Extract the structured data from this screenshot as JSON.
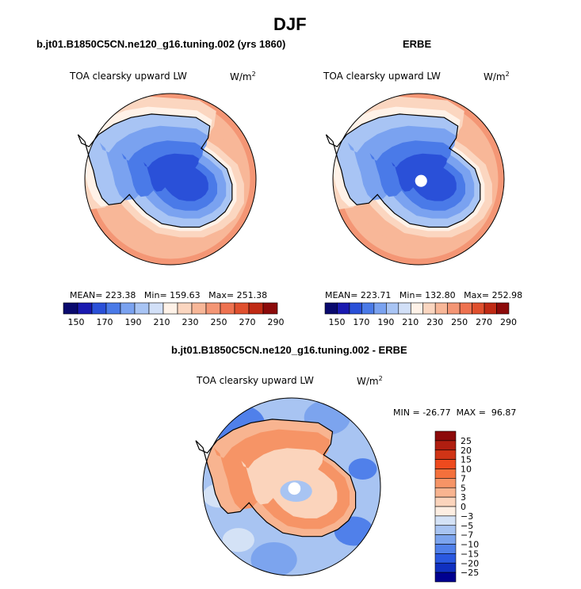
{
  "page": {
    "title": "DJF",
    "panel_left_title": "b.jt01.B1850C5CN.ne120_g16.tuning.002 (yrs 1860)",
    "panel_right_title": "ERBE",
    "panel_bottom_title": "b.jt01.B1850C5CN.ne120_g16.tuning.002 - ERBE",
    "variable": "TOA clearsky upward LW",
    "units_base": "W/m",
    "units_exp": "2"
  },
  "chart_data": [
    {
      "type": "heatmap",
      "name": "model",
      "title": "b.jt01.B1850C5CN.ne120_g16.tuning.002 (yrs 1860)",
      "projection": "polar-stereographic-south",
      "stats": {
        "mean_label": "MEAN=",
        "mean": "223.38",
        "min_label": "Min=",
        "min": "159.63",
        "max_label": "Max=",
        "max": "251.38"
      },
      "colorbar_levels": [
        150,
        170,
        190,
        210,
        230,
        250,
        270,
        290
      ],
      "colorbar_colors": [
        "#0a0a6e",
        "#1a1ab0",
        "#2a50d8",
        "#4a7ae8",
        "#7aa2f0",
        "#a8c4f4",
        "#d2e0f8",
        "#fff2e8",
        "#fbd6c0",
        "#f8b798",
        "#f49675",
        "#ee7250",
        "#e0502e",
        "#c02a14",
        "#8c0a0a"
      ]
    },
    {
      "type": "heatmap",
      "name": "obs",
      "title": "ERBE",
      "projection": "polar-stereographic-south",
      "stats": {
        "mean_label": "MEAN=",
        "mean": "223.71",
        "min_label": "Min=",
        "min": "132.80",
        "max_label": "Max=",
        "max": "252.98"
      },
      "colorbar_levels": [
        150,
        170,
        190,
        210,
        230,
        250,
        270,
        290
      ],
      "colorbar_colors": [
        "#0a0a6e",
        "#1a1ab0",
        "#2a50d8",
        "#4a7ae8",
        "#7aa2f0",
        "#a8c4f4",
        "#d2e0f8",
        "#fff2e8",
        "#fbd6c0",
        "#f8b798",
        "#f49675",
        "#ee7250",
        "#e0502e",
        "#c02a14",
        "#8c0a0a"
      ]
    },
    {
      "type": "heatmap",
      "name": "difference",
      "title": "b.jt01.B1850C5CN.ne120_g16.tuning.002 - ERBE",
      "projection": "polar-stereographic-south",
      "stats": {
        "min_label": "MIN =",
        "min": "-26.77",
        "max_label": "MAX =",
        "max": "96.87"
      },
      "colorbar_levels": [
        "25",
        "20",
        "15",
        "10",
        "7",
        "5",
        "3",
        "0",
        "−3",
        "−5",
        "−7",
        "−10",
        "−15",
        "−20",
        "−25"
      ],
      "colorbar_colors": [
        "#8c0a0a",
        "#b01e10",
        "#d03416",
        "#ee4a1e",
        "#f4703c",
        "#f69466",
        "#f8b490",
        "#fbd4bc",
        "#fdeee2",
        "#d4e2f6",
        "#a8c4f2",
        "#7ca4ee",
        "#5080ea",
        "#2a58e0",
        "#1030c0",
        "#000090"
      ]
    }
  ]
}
